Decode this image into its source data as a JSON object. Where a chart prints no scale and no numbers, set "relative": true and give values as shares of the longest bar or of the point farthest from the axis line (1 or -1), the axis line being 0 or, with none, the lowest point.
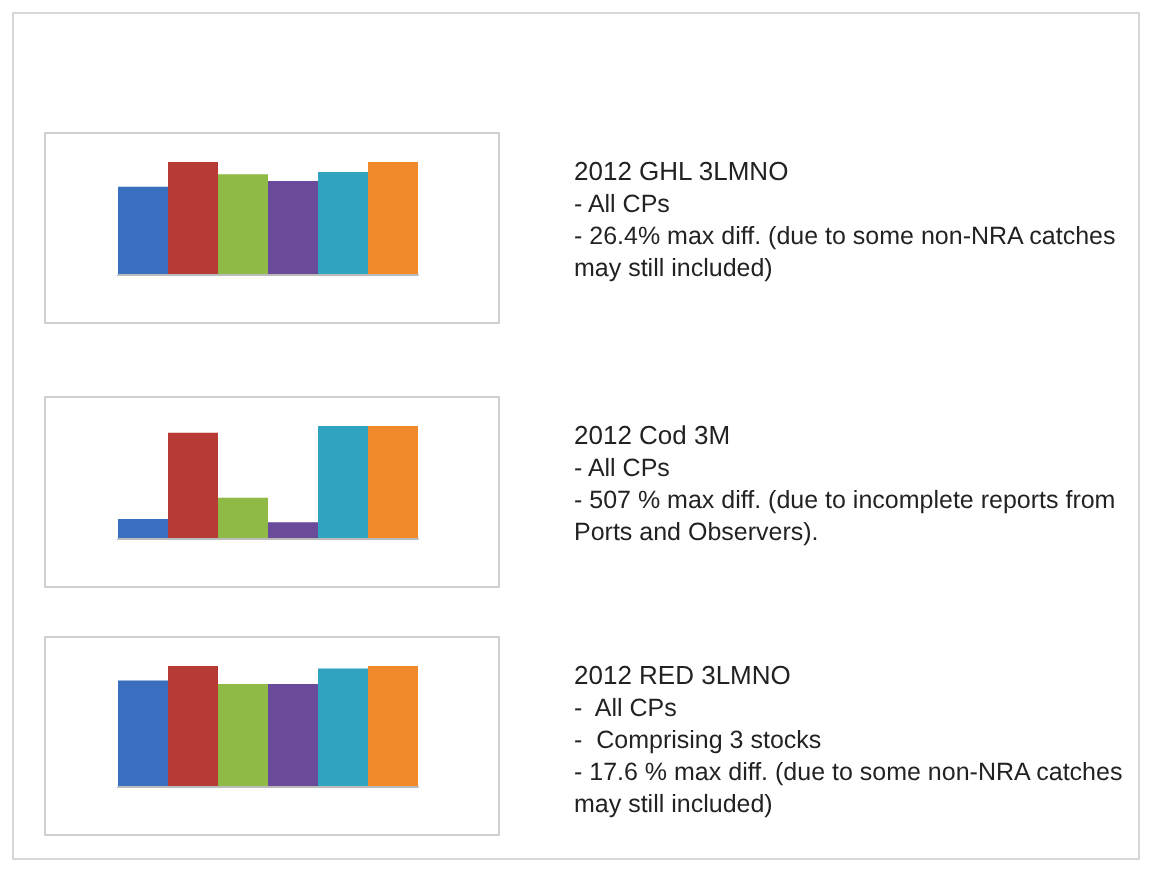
{
  "chart_data": [
    {
      "type": "bar",
      "relative": true,
      "categories": [
        null,
        null,
        null,
        null,
        null,
        null
      ],
      "values": [
        0.78,
        1,
        0.89,
        0.83,
        0.91,
        1
      ],
      "colors": [
        "#3a6fbf",
        "#b83a35",
        "#8fba45",
        "#6a4a9a",
        "#2fa3c0",
        "#f08a2a"
      ]
    },
    {
      "type": "other",
      "title": "2012 GHL 3LMNO",
      "annotations": [
        "- All CPs",
        "- 26.4% max diff. (due to some non-NRA catches may still included)"
      ]
    },
    {
      "type": "bar",
      "relative": true,
      "categories": [
        null,
        null,
        null,
        null,
        null,
        null
      ],
      "values": [
        0.17,
        0.94,
        0.36,
        0.14,
        1,
        1
      ],
      "colors": [
        "#3a6fbf",
        "#b83a35",
        "#8fba45",
        "#6a4a9a",
        "#2fa3c0",
        "#f08a2a"
      ]
    },
    {
      "type": "other",
      "title": "2012 Cod 3M",
      "annotations": [
        "- All CPs",
        "- 507 % max diff. (due to incomplete reports from Ports and Observers)."
      ]
    },
    {
      "type": "bar",
      "relative": true,
      "categories": [
        null,
        null,
        null,
        null,
        null,
        null
      ],
      "values": [
        0.88,
        1,
        0.85,
        0.85,
        0.98,
        1
      ],
      "colors": [
        "#3a6fbf",
        "#b83a35",
        "#8fba45",
        "#6a4a9a",
        "#2fa3c0",
        "#f08a2a"
      ]
    },
    {
      "type": "other",
      "title": "2012 RED 3LMNO",
      "annotations": [
        "-  All CPs",
        "-  Comprising 3 stocks",
        "- 17.6 % max diff. (due to some non-NRA catches may still included)"
      ]
    }
  ]
}
